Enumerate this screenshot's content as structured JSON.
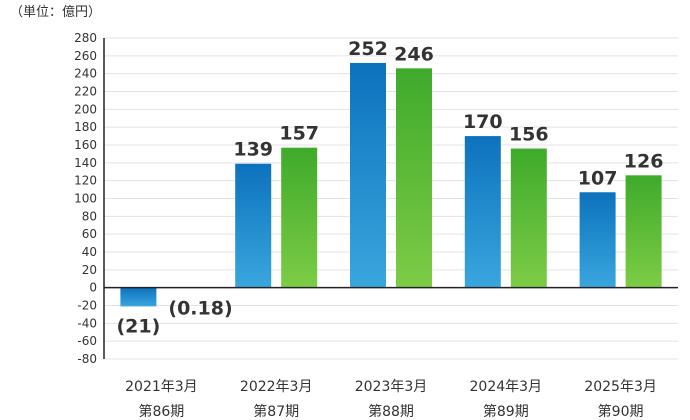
{
  "chart_data": {
    "type": "bar",
    "unit_label": "（単位：億円）",
    "categories": [
      [
        "2021年3月",
        "第86期"
      ],
      [
        "2022年3月",
        "第87期"
      ],
      [
        "2023年3月",
        "第88期"
      ],
      [
        "2024年3月",
        "第89期"
      ],
      [
        "2025年3月",
        "第90期"
      ]
    ],
    "series": [
      {
        "name": "series-1",
        "color_top": "#0c72bd",
        "color_bottom": "#3aa6de",
        "values": [
          -21,
          139,
          252,
          170,
          107
        ],
        "labels": [
          "(21)",
          "139",
          "252",
          "170",
          "107"
        ]
      },
      {
        "name": "series-2",
        "color_top": "#3faa2b",
        "color_bottom": "#7dcc46",
        "values": [
          -0.18,
          157,
          246,
          156,
          126
        ],
        "labels": [
          "(0.18)",
          "157",
          "246",
          "156",
          "126"
        ]
      }
    ],
    "ylim": [
      -80,
      280
    ],
    "yticks": [
      280,
      260,
      240,
      220,
      200,
      180,
      160,
      140,
      120,
      100,
      80,
      60,
      40,
      20,
      0,
      -20,
      -40,
      -60,
      -80
    ],
    "grid": true,
    "title": "",
    "xlabel": "",
    "ylabel": ""
  }
}
